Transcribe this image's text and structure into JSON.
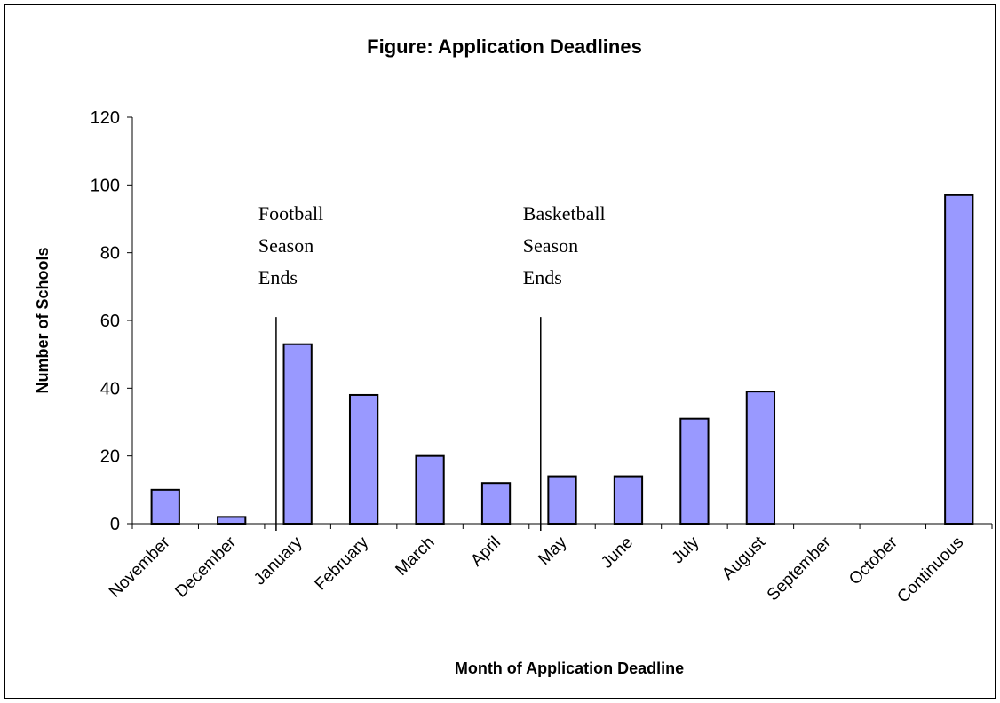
{
  "chart_data": {
    "type": "bar",
    "title": "Figure:  Application Deadlines",
    "xlabel": "Month of Application Deadline",
    "ylabel": "Number of Schools",
    "categories": [
      "November",
      "December",
      "January",
      "February",
      "March",
      "April",
      "May",
      "June",
      "July",
      "August",
      "September",
      "October",
      "Continuous"
    ],
    "values": [
      10,
      2,
      53,
      38,
      20,
      12,
      14,
      14,
      31,
      39,
      0,
      0,
      97
    ],
    "ylim": [
      0,
      120
    ],
    "yticks": [
      "0",
      "20",
      "40",
      "60",
      "80",
      "100",
      "120"
    ],
    "grid": false,
    "legend": "none",
    "bar_color": "#9999ff",
    "bar_edge_color": "#000000",
    "annotations": [
      {
        "lines": [
          "Football",
          "Season",
          "Ends"
        ],
        "between": [
          "December",
          "January"
        ],
        "line_top_value": 61
      },
      {
        "lines": [
          "Basketball",
          "Season",
          "Ends"
        ],
        "between": [
          "April",
          "May"
        ],
        "line_top_value": 61
      }
    ]
  }
}
